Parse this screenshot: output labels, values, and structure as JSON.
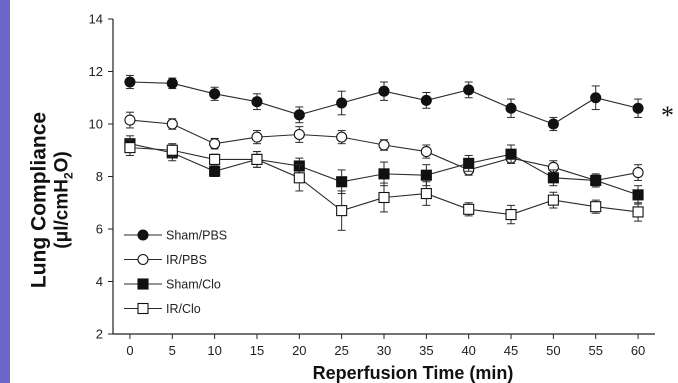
{
  "colors": {
    "left_bar": "#6a67c6",
    "line": "#2a2a2a",
    "fill_closed": "#111111",
    "fill_open": "#ffffff"
  },
  "chart_data": {
    "type": "line",
    "xlabel": "Reperfusion Time (min)",
    "ylabel": {
      "line1": "Lung Compliance",
      "line2_pre": "(μl/cmH",
      "line2_sub": "2",
      "line2_post": "O)"
    },
    "x": [
      0,
      5,
      10,
      15,
      20,
      25,
      30,
      35,
      40,
      45,
      50,
      55,
      60
    ],
    "xlim": [
      -2,
      62
    ],
    "ylim": [
      2,
      14
    ],
    "yticks": [
      2,
      4,
      6,
      8,
      10,
      12,
      14
    ],
    "grid": false,
    "legend_position": "bottom-left",
    "annotation": "*",
    "series": [
      {
        "name": "Sham/PBS",
        "marker": "circle",
        "filled": true,
        "values": [
          11.6,
          11.55,
          11.15,
          10.85,
          10.35,
          10.8,
          11.25,
          10.9,
          11.3,
          10.6,
          10.0,
          11.0,
          10.6
        ],
        "errors": [
          0.25,
          0.2,
          0.25,
          0.3,
          0.3,
          0.45,
          0.35,
          0.3,
          0.3,
          0.35,
          0.25,
          0.45,
          0.35
        ]
      },
      {
        "name": "IR/PBS",
        "marker": "circle",
        "filled": false,
        "values": [
          10.15,
          10.0,
          9.25,
          9.5,
          9.6,
          9.5,
          9.2,
          8.95,
          8.25,
          8.7,
          8.35,
          7.85,
          8.15
        ],
        "errors": [
          0.3,
          0.2,
          0.2,
          0.25,
          0.3,
          0.25,
          0.2,
          0.25,
          0.2,
          0.2,
          0.25,
          0.2,
          0.3
        ]
      },
      {
        "name": "Sham/Clo",
        "marker": "square",
        "filled": true,
        "values": [
          9.25,
          8.9,
          8.2,
          8.65,
          8.4,
          7.8,
          8.1,
          8.05,
          8.5,
          8.85,
          7.95,
          7.85,
          7.3
        ],
        "errors": [
          0.3,
          0.3,
          0.2,
          0.3,
          0.3,
          0.45,
          0.45,
          0.4,
          0.3,
          0.35,
          0.3,
          0.25,
          0.35
        ]
      },
      {
        "name": "IR/Clo",
        "marker": "square",
        "filled": false,
        "values": [
          9.1,
          9.0,
          8.65,
          8.65,
          7.95,
          6.7,
          7.2,
          7.35,
          6.75,
          6.55,
          7.1,
          6.85,
          6.65
        ],
        "errors": [
          0.3,
          0.25,
          0.2,
          0.3,
          0.5,
          0.75,
          0.55,
          0.45,
          0.25,
          0.35,
          0.3,
          0.25,
          0.35
        ]
      }
    ]
  }
}
